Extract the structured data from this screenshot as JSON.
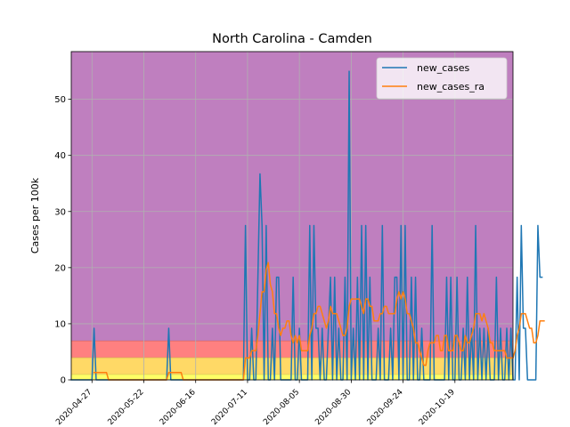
{
  "chart_data": {
    "type": "line",
    "title": "North Carolina - Camden",
    "xlabel": "",
    "ylabel": "Cases per 100k",
    "x_start": "2020-04-17",
    "x_end": "2020-11-13",
    "xlim": [
      "2020-04-17",
      "2020-11-16"
    ],
    "ylim": [
      0,
      58.5
    ],
    "grid": true,
    "legend": "top-right",
    "x_ticks": [
      "2020-04-27",
      "2020-05-22",
      "2020-06-16",
      "2020-07-11",
      "2020-08-05",
      "2020-08-30",
      "2020-09-24",
      "2020-10-19"
    ],
    "y_ticks": [
      0,
      10,
      20,
      30,
      40,
      50
    ],
    "bands": [
      {
        "from": 0,
        "to": 1,
        "color": "#ffff66"
      },
      {
        "from": 1,
        "to": 4,
        "color": "#ffd966"
      },
      {
        "from": 4,
        "to": 7,
        "color": "#ff8080"
      },
      {
        "from": 7,
        "to": 58.5,
        "color": "#bf7fbf"
      }
    ],
    "series": [
      {
        "name": "new_cases",
        "color": "#1f77b4",
        "values": [
          0,
          0,
          0,
          0,
          0,
          0,
          0,
          0,
          0,
          0,
          0,
          9.2,
          0,
          0,
          0,
          0,
          0,
          0,
          0,
          0,
          0,
          0,
          0,
          0,
          0,
          0,
          0,
          0,
          0,
          0,
          0,
          0,
          0,
          0,
          0,
          0,
          0,
          0,
          0,
          0,
          0,
          0,
          0,
          0,
          0,
          0,
          0,
          9.2,
          0,
          0,
          0,
          0,
          0,
          0,
          0,
          0,
          0,
          0,
          0,
          0,
          0,
          0,
          0,
          0,
          0,
          0,
          0,
          0,
          0,
          0,
          0,
          0,
          0,
          0,
          0,
          0,
          0,
          0,
          0,
          0,
          0,
          0,
          0,
          0,
          27.5,
          0,
          0,
          9.2,
          0,
          0,
          18.3,
          36.7,
          27.5,
          0,
          27.5,
          0,
          0,
          9.2,
          0,
          18.3,
          18.3,
          0,
          0,
          0,
          0,
          0,
          0,
          18.3,
          0,
          0,
          9.2,
          0,
          0,
          0,
          0,
          27.5,
          0,
          27.5,
          9.2,
          9.2,
          0,
          9.2,
          0,
          0,
          9.2,
          18.3,
          0,
          18.3,
          0,
          9.2,
          0,
          0,
          18.3,
          0,
          55,
          0,
          9.2,
          0,
          18.3,
          0,
          27.5,
          0,
          27.5,
          0,
          18.3,
          0,
          0,
          0,
          9.2,
          0,
          27.5,
          0,
          0,
          0,
          9.2,
          0,
          18.3,
          18.3,
          0,
          27.5,
          0,
          27.5,
          0,
          0,
          18.3,
          0,
          18.3,
          0,
          0,
          9.2,
          0,
          0,
          0,
          0,
          27.5,
          0,
          0,
          0,
          0,
          0,
          0,
          18.3,
          0,
          18.3,
          0,
          0,
          18.3,
          0,
          0,
          9.2,
          0,
          18.3,
          0,
          9.2,
          0,
          27.5,
          0,
          9.2,
          0,
          9.2,
          0,
          9.2,
          0,
          0,
          0,
          18.3,
          0,
          9.2,
          0,
          0,
          9.2,
          0,
          9.2,
          0,
          0,
          18.3,
          0,
          27.5,
          9.2,
          9.2,
          0,
          0,
          0,
          0,
          0,
          27.5,
          18.3,
          18.3
        ]
      },
      {
        "name": "new_cases_ra",
        "color": "#ff7f0e",
        "values": [
          null,
          null,
          null,
          null,
          null,
          null,
          null,
          null,
          null,
          null,
          null,
          1.3,
          1.3,
          1.3,
          1.3,
          1.3,
          1.3,
          1.3,
          0,
          0,
          0,
          0,
          0,
          0,
          0,
          0,
          0,
          0,
          0,
          0,
          0,
          0,
          0,
          0,
          0,
          0,
          0,
          0,
          0,
          0,
          0,
          0,
          0,
          0,
          0,
          0,
          0,
          1.3,
          1.3,
          1.3,
          1.3,
          1.3,
          1.3,
          1.3,
          0,
          0,
          0,
          0,
          0,
          0,
          0,
          0,
          0,
          0,
          0,
          0,
          0,
          0,
          0,
          0,
          0,
          0,
          0,
          0,
          0,
          0,
          0,
          0,
          0,
          0,
          0,
          0,
          0,
          0,
          3.9,
          3.9,
          3.9,
          5.2,
          5.2,
          5.2,
          7.9,
          11.8,
          15.7,
          15.7,
          19.6,
          20.9,
          17,
          15.7,
          11.8,
          11.8,
          9.2,
          7.9,
          9.2,
          9.2,
          10.5,
          10.5,
          7.9,
          6.6,
          7.9,
          6.6,
          7.9,
          5.2,
          5.2,
          5.2,
          5.2,
          7.9,
          9.2,
          11.8,
          11.8,
          13.1,
          13.1,
          11.8,
          10.5,
          9.2,
          10.5,
          13.1,
          11.8,
          11.8,
          11.8,
          10.5,
          9.2,
          7.9,
          7.9,
          9.2,
          13.1,
          14.4,
          14.4,
          14.4,
          14.4,
          14.4,
          13.1,
          11.8,
          14.4,
          14.4,
          13.1,
          13.1,
          10.5,
          10.5,
          10.5,
          11.8,
          11.8,
          13.1,
          13.1,
          11.8,
          11.8,
          11.8,
          11.8,
          14.4,
          15.7,
          14.4,
          15.7,
          14.4,
          11.8,
          11.8,
          10.5,
          9.2,
          6.6,
          6.6,
          5.2,
          3.9,
          2.6,
          2.6,
          5.2,
          6.6,
          6.6,
          6.6,
          7.9,
          7.9,
          5.2,
          5.2,
          7.9,
          7.9,
          5.2,
          5.2,
          5.2,
          7.9,
          7.9,
          6.6,
          5.2,
          5.2,
          7.9,
          6.6,
          6.6,
          7.9,
          9.2,
          11.8,
          11.8,
          11.8,
          10.5,
          11.8,
          10.5,
          9.2,
          6.6,
          6.6,
          5.2,
          5.2,
          5.2,
          5.2,
          5.2,
          5.2,
          3.9,
          3.9,
          3.9,
          3.9,
          5.2,
          7.9,
          9.2,
          11.8,
          11.8,
          11.8,
          10.5,
          9.2,
          9.2,
          6.6,
          6.6,
          7.9,
          10.5,
          10.5,
          10.5
        ]
      }
    ]
  }
}
